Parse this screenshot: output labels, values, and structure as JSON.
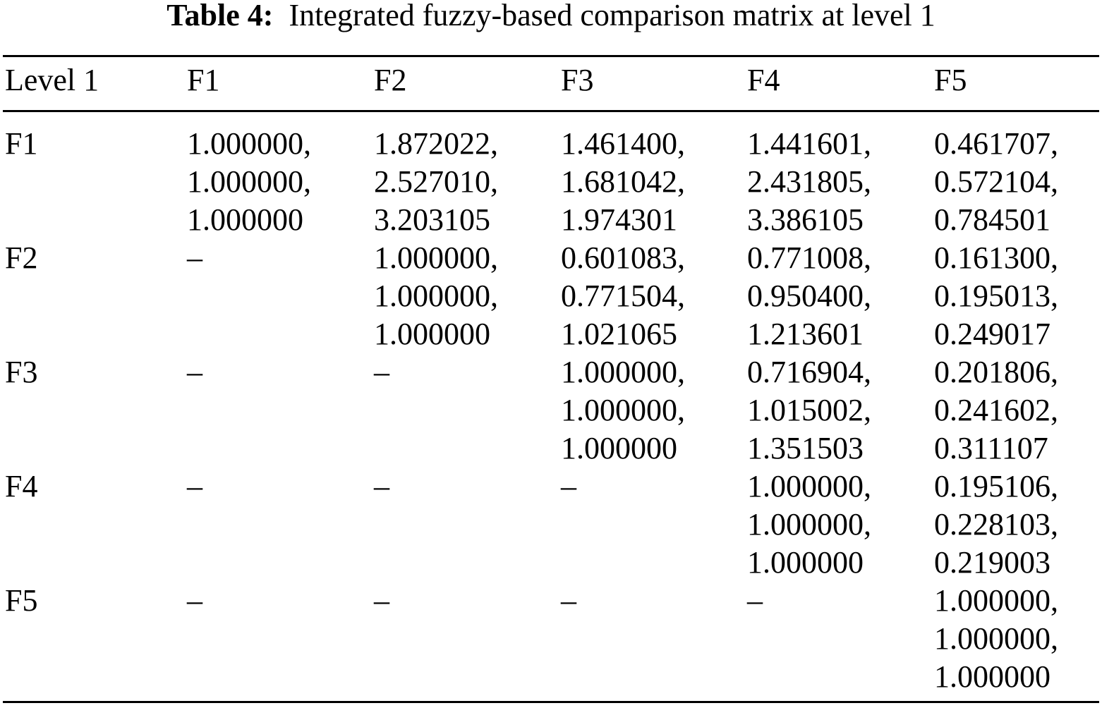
{
  "caption": {
    "label": "Table 4:",
    "text": "Integrated fuzzy-based comparison matrix at level 1"
  },
  "table": {
    "headers": [
      "Level 1",
      "F1",
      "F2",
      "F3",
      "F4",
      "F5"
    ],
    "rows": [
      {
        "label": "F1",
        "cells": [
          [
            "1.000000,",
            "1.000000,",
            "1.000000"
          ],
          [
            "1.872022,",
            "2.527010,",
            "3.203105"
          ],
          [
            "1.461400,",
            "1.681042,",
            "1.974301"
          ],
          [
            "1.441601,",
            "2.431805,",
            "3.386105"
          ],
          [
            "0.461707,",
            "0.572104,",
            "0.784501"
          ]
        ]
      },
      {
        "label": "F2",
        "cells": [
          [
            "–",
            "",
            ""
          ],
          [
            "1.000000,",
            "1.000000,",
            "1.000000"
          ],
          [
            "0.601083,",
            "0.771504,",
            "1.021065"
          ],
          [
            "0.771008,",
            "0.950400,",
            "1.213601"
          ],
          [
            "0.161300,",
            "0.195013,",
            "0.249017"
          ]
        ]
      },
      {
        "label": "F3",
        "cells": [
          [
            "–",
            "",
            ""
          ],
          [
            "–",
            "",
            ""
          ],
          [
            "1.000000,",
            "1.000000,",
            "1.000000"
          ],
          [
            "0.716904,",
            "1.015002,",
            "1.351503"
          ],
          [
            "0.201806,",
            "0.241602,",
            "0.311107"
          ]
        ]
      },
      {
        "label": "F4",
        "cells": [
          [
            "–",
            "",
            ""
          ],
          [
            "–",
            "",
            ""
          ],
          [
            "–",
            "",
            ""
          ],
          [
            "1.000000,",
            "1.000000,",
            "1.000000"
          ],
          [
            "0.195106,",
            "0.228103,",
            "0.219003"
          ]
        ]
      },
      {
        "label": "F5",
        "cells": [
          [
            "–",
            "",
            ""
          ],
          [
            "–",
            "",
            ""
          ],
          [
            "–",
            "",
            ""
          ],
          [
            "–",
            "",
            ""
          ],
          [
            "1.000000,",
            "1.000000,",
            "1.000000"
          ]
        ]
      }
    ]
  }
}
